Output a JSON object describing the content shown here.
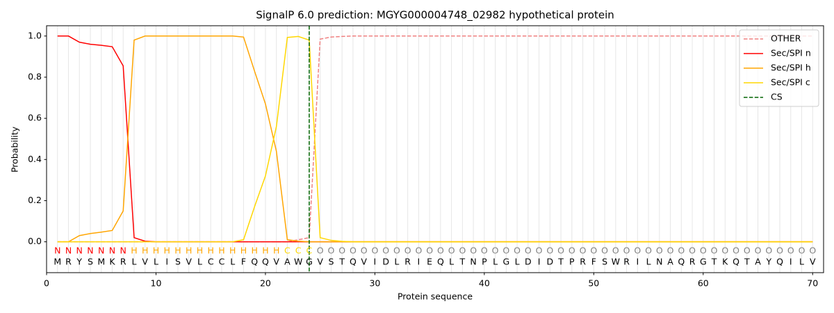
{
  "chart_data": {
    "type": "line",
    "title": "SignalP 6.0 prediction: MGYG000004748_02982 hypothetical protein",
    "xlabel": "Protein sequence",
    "ylabel": "Probability",
    "x": [
      1,
      2,
      3,
      4,
      5,
      6,
      7,
      8,
      9,
      10,
      11,
      12,
      13,
      14,
      15,
      16,
      17,
      18,
      19,
      20,
      21,
      22,
      23,
      24,
      25,
      26,
      27,
      28,
      29,
      30,
      31,
      32,
      33,
      34,
      35,
      36,
      37,
      38,
      39,
      40,
      41,
      42,
      43,
      44,
      45,
      46,
      47,
      48,
      49,
      50,
      51,
      52,
      53,
      54,
      55,
      56,
      57,
      58,
      59,
      60,
      61,
      62,
      63,
      64,
      65,
      66,
      67,
      68,
      69,
      70
    ],
    "residues": [
      "M",
      "R",
      "Y",
      "S",
      "M",
      "K",
      "R",
      "L",
      "V",
      "L",
      "I",
      "S",
      "V",
      "L",
      "C",
      "C",
      "L",
      "F",
      "Q",
      "Q",
      "V",
      "A",
      "W",
      "G",
      "V",
      "S",
      "T",
      "Q",
      "V",
      "I",
      "D",
      "L",
      "R",
      "I",
      "E",
      "Q",
      "L",
      "T",
      "N",
      "P",
      "L",
      "G",
      "L",
      "D",
      "I",
      "D",
      "T",
      "P",
      "R",
      "F",
      "S",
      "W",
      "R",
      "I",
      "L",
      "N",
      "A",
      "Q",
      "R",
      "G",
      "T",
      "K",
      "Q",
      "T",
      "A",
      "Y",
      "Q",
      "I",
      "L",
      "V"
    ],
    "labels": [
      "N",
      "N",
      "N",
      "N",
      "N",
      "N",
      "N",
      "H",
      "H",
      "H",
      "H",
      "H",
      "H",
      "H",
      "H",
      "H",
      "H",
      "H",
      "H",
      "H",
      "H",
      "C",
      "C",
      "C",
      "O",
      "O",
      "O",
      "O",
      "O",
      "O",
      "O",
      "O",
      "O",
      "O",
      "O",
      "O",
      "O",
      "O",
      "O",
      "O",
      "O",
      "O",
      "O",
      "O",
      "O",
      "O",
      "O",
      "O",
      "O",
      "O",
      "O",
      "O",
      "O",
      "O",
      "O",
      "O",
      "O",
      "O",
      "O",
      "O",
      "O",
      "O",
      "O",
      "O",
      "O",
      "O",
      "O",
      "O",
      "O",
      "O"
    ],
    "label_colors": {
      "N": "#ff0000",
      "H": "#ffa500",
      "C": "#ffd700",
      "O": "#808080"
    },
    "series": [
      {
        "name": "OTHER",
        "color": "#f08080",
        "dashed": true,
        "values": [
          0,
          0,
          0,
          0,
          0,
          0,
          0,
          0,
          0,
          0,
          0,
          0,
          0,
          0,
          0,
          0,
          0,
          0,
          0,
          0,
          0,
          0,
          0.01,
          0.02,
          0.985,
          0.995,
          0.998,
          1,
          1,
          1,
          1,
          1,
          1,
          1,
          1,
          1,
          1,
          1,
          1,
          1,
          1,
          1,
          1,
          1,
          1,
          1,
          1,
          1,
          1,
          1,
          1,
          1,
          1,
          1,
          1,
          1,
          1,
          1,
          1,
          1,
          1,
          1,
          1,
          1,
          1,
          1,
          1,
          1,
          1,
          1
        ]
      },
      {
        "name": "Sec/SPI n",
        "color": "#ff0000",
        "values": [
          1,
          1,
          0.97,
          0.96,
          0.955,
          0.948,
          0.855,
          0.02,
          0.003,
          0,
          0,
          0,
          0,
          0,
          0,
          0,
          0,
          0,
          0,
          0,
          0,
          0,
          0,
          0,
          0,
          0,
          0,
          0,
          0,
          0,
          0,
          0,
          0,
          0,
          0,
          0,
          0,
          0,
          0,
          0,
          0,
          0,
          0,
          0,
          0,
          0,
          0,
          0,
          0,
          0,
          0,
          0,
          0,
          0,
          0,
          0,
          0,
          0,
          0,
          0,
          0,
          0,
          0,
          0,
          0,
          0,
          0,
          0,
          0,
          0
        ]
      },
      {
        "name": "Sec/SPI h",
        "color": "#ffa500",
        "values": [
          0,
          0,
          0.03,
          0.04,
          0.047,
          0.055,
          0.15,
          0.98,
          1,
          1,
          1,
          1,
          1,
          1,
          1,
          1,
          1,
          0.995,
          0.83,
          0.67,
          0.44,
          0.01,
          0.003,
          0,
          0,
          0,
          0,
          0,
          0,
          0,
          0,
          0,
          0,
          0,
          0,
          0,
          0,
          0,
          0,
          0,
          0,
          0,
          0,
          0,
          0,
          0,
          0,
          0,
          0,
          0,
          0,
          0,
          0,
          0,
          0,
          0,
          0,
          0,
          0,
          0,
          0,
          0,
          0,
          0,
          0,
          0,
          0,
          0,
          0,
          0
        ]
      },
      {
        "name": "Sec/SPI c",
        "color": "#ffd700",
        "values": [
          0,
          0,
          0,
          0,
          0,
          0,
          0,
          0,
          0,
          0,
          0,
          0,
          0,
          0,
          0,
          0,
          0,
          0.01,
          0.17,
          0.32,
          0.56,
          0.993,
          0.998,
          0.98,
          0.02,
          0.007,
          0.002,
          0,
          0,
          0,
          0,
          0,
          0,
          0,
          0,
          0,
          0,
          0,
          0,
          0,
          0,
          0,
          0,
          0,
          0,
          0,
          0,
          0,
          0,
          0,
          0,
          0,
          0,
          0,
          0,
          0,
          0,
          0,
          0,
          0,
          0,
          0,
          0,
          0,
          0,
          0,
          0,
          0,
          0,
          0
        ]
      }
    ],
    "cs": {
      "name": "CS",
      "x": 24,
      "color": "#006400"
    },
    "xlim": [
      0,
      71
    ],
    "ylim": [
      -0.15,
      1.05
    ],
    "xticks": [
      0,
      10,
      20,
      30,
      40,
      50,
      60,
      70
    ],
    "yticks": [
      {
        "value": 0,
        "label": "0.0"
      },
      0.2,
      0.4,
      0.6,
      0.8,
      {
        "value": 1,
        "label": "1.0"
      }
    ]
  }
}
